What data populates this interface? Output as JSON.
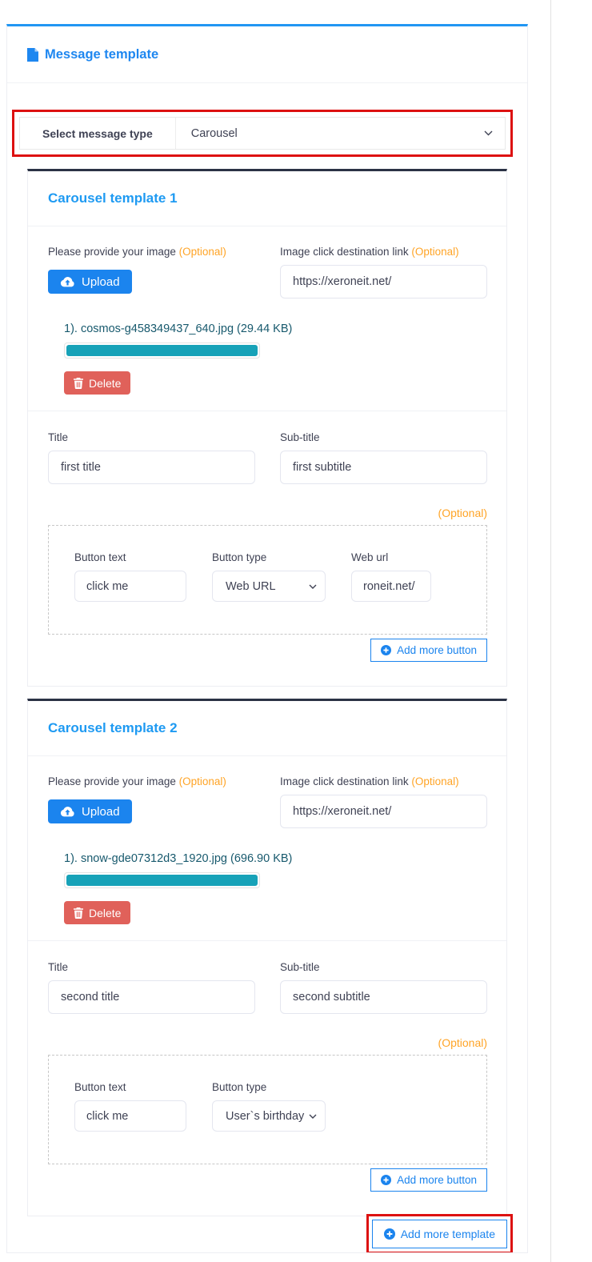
{
  "header": {
    "title": "Message template"
  },
  "select_row": {
    "label": "Select message type",
    "value": "Carousel"
  },
  "optional_tag": "(Optional)",
  "labels": {
    "image": "Please provide your image",
    "image_link": "Image click destination link",
    "title": "Title",
    "subtitle": "Sub-title",
    "button_text": "Button text",
    "button_type": "Button type",
    "web_url": "Web url"
  },
  "buttons": {
    "upload": "Upload",
    "delete": "Delete",
    "add_more_button": "Add more button",
    "add_more_template": "Add more template"
  },
  "templates": [
    {
      "title": "Carousel template 1",
      "image_link_value": "https://xeroneit.net/",
      "file_label": "1). cosmos-g458349437_640.jpg (29.44 KB)",
      "progress_percent": 100,
      "title_value": "first title",
      "subtitle_value": "first subtitle",
      "button": {
        "text_value": "click me",
        "type_value": "Web URL",
        "web_url_value": "roneit.net/"
      }
    },
    {
      "title": "Carousel template 2",
      "image_link_value": "https://xeroneit.net/",
      "file_label": "1). snow-gde07312d3_1920.jpg (696.90 KB)",
      "progress_percent": 100,
      "title_value": "second title",
      "subtitle_value": "second subtitle",
      "button": {
        "text_value": "click me",
        "type_value": "User`s birthday",
        "web_url_value": null
      }
    }
  ],
  "icons": {
    "header": "file-icon",
    "upload": "cloud-upload-icon",
    "delete": "trash-icon",
    "add": "plus-circle-icon",
    "select": "chevron-down-icon"
  },
  "colors": {
    "accent_blue": "#1b84ee",
    "title_blue": "#1e9af2",
    "top_bar_blue": "#2196f3",
    "navy_border": "#2b3245",
    "orange": "#ffa426",
    "progress_teal": "#17a2b8",
    "file_text_teal": "#17596d",
    "delete_red": "#e0615a",
    "highlight_red": "#dd1111"
  }
}
